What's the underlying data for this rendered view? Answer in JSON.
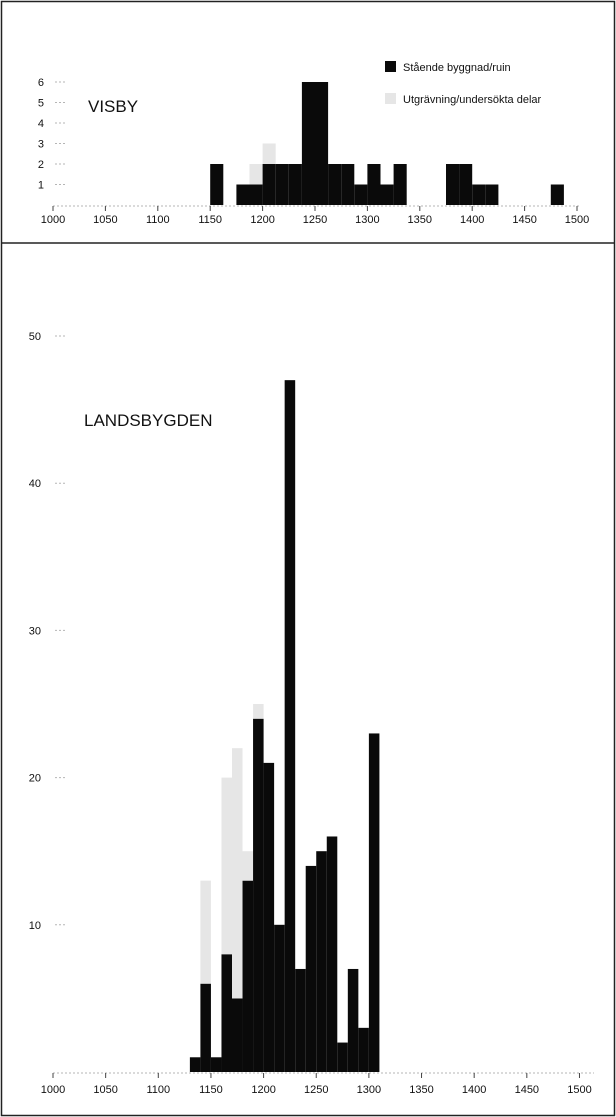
{
  "colors": {
    "standing": "#0a0a0a",
    "excavated": "#e6e6e6",
    "axis": "#b5b5b5",
    "frame": "#222222"
  },
  "legend": {
    "standing_label": "Stående byggnad/ruin",
    "excavated_label": "Utgrävning/undersökta delar"
  },
  "chart_data": [
    {
      "type": "bar",
      "stacked": true,
      "title": "VISBY",
      "xlabel": "",
      "ylabel": "",
      "bin_width": 12.5,
      "xlim": [
        1000,
        1500
      ],
      "ylim": [
        0,
        6
      ],
      "xticks": [
        1000,
        1050,
        1100,
        1150,
        1200,
        1250,
        1300,
        1350,
        1400,
        1450,
        1500
      ],
      "yticks": [
        1,
        2,
        3,
        4,
        5,
        6
      ],
      "legend": "top-right",
      "grid": false,
      "categories": [
        1150,
        1175,
        1187.5,
        1200,
        1212.5,
        1225,
        1237.5,
        1250,
        1262.5,
        1275,
        1287.5,
        1300,
        1312.5,
        1325,
        1375,
        1387.5,
        1400,
        1412.5,
        1475
      ],
      "series": [
        {
          "name": "Stående byggnad/ruin",
          "values": [
            2,
            1,
            1,
            2,
            2,
            2,
            6,
            6,
            2,
            2,
            1,
            2,
            1,
            2,
            2,
            2,
            1,
            1,
            1
          ]
        },
        {
          "name": "Utgrävning/undersökta delar",
          "values": [
            0,
            0,
            1,
            1,
            0,
            0,
            0,
            0,
            0,
            0,
            0,
            0,
            0,
            0,
            0,
            0,
            0,
            0,
            0
          ]
        }
      ]
    },
    {
      "type": "bar",
      "stacked": true,
      "title": "LANDSBYGDEN",
      "xlabel": "",
      "ylabel": "",
      "bin_width": 10,
      "xlim": [
        1000,
        1510
      ],
      "ylim": [
        0,
        50
      ],
      "xticks": [
        1000,
        1050,
        1100,
        1150,
        1200,
        1250,
        1300,
        1350,
        1400,
        1450,
        1500
      ],
      "yticks": [
        10,
        20,
        30,
        40,
        50
      ],
      "legend": "none",
      "grid": false,
      "categories": [
        1130,
        1140,
        1150,
        1160,
        1170,
        1180,
        1190,
        1200,
        1210,
        1220,
        1230,
        1240,
        1250,
        1260,
        1270,
        1280,
        1290,
        1300,
        1310,
        1320,
        1330,
        1340
      ],
      "series": [
        {
          "name": "Stående byggnad/ruin",
          "values": [
            1,
            6,
            1,
            8,
            5,
            13,
            24,
            21,
            10,
            47,
            7,
            14,
            15,
            16,
            2,
            7,
            3,
            23,
            0,
            0,
            0,
            0
          ]
        },
        {
          "name": "Utgrävning/undersökta delar",
          "values": [
            0,
            7,
            0,
            12,
            17,
            2,
            1,
            0,
            0,
            0,
            0,
            0,
            0,
            0,
            0,
            0,
            0,
            0,
            0,
            0,
            0,
            0
          ]
        }
      ]
    }
  ]
}
